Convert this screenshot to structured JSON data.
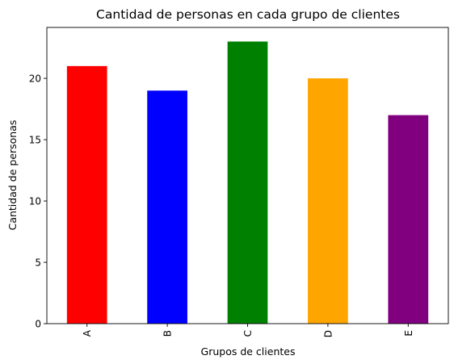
{
  "chart_data": {
    "type": "bar",
    "title": "Cantidad de personas en cada grupo de clientes",
    "xlabel": "Grupos de clientes",
    "ylabel": "Cantidad de personas",
    "categories": [
      "A",
      "B",
      "C",
      "D",
      "E"
    ],
    "values": [
      21,
      19,
      23,
      20,
      17
    ],
    "colors": [
      "#ff0000",
      "#0000ff",
      "#008000",
      "#ffa500",
      "#800080"
    ],
    "ylim": [
      0,
      24.15
    ],
    "yticks": [
      0,
      5,
      10,
      15,
      20
    ],
    "grid": false,
    "legend": "none"
  }
}
